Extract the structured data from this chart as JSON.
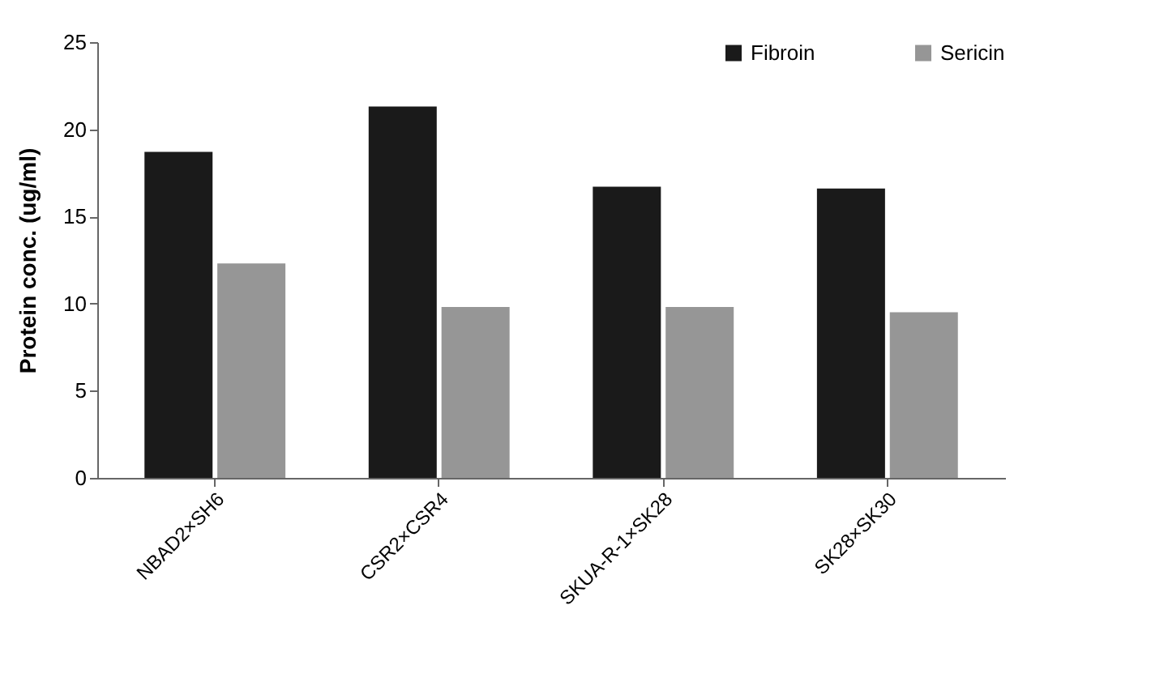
{
  "chart_data": {
    "type": "bar",
    "ylabel": "Protein conc. (ug/ml)",
    "categories": [
      "NBAD2×SH6",
      "CSR2×CSR4",
      "SKUA-R-1×SK28",
      "SK28×SK30"
    ],
    "series": [
      {
        "name": "Fibroin",
        "color": "#1a1a1a",
        "values": [
          18.7,
          21.3,
          16.7,
          16.6
        ]
      },
      {
        "name": "Sericin",
        "color": "#969696",
        "values": [
          12.3,
          9.8,
          9.8,
          9.5
        ]
      }
    ],
    "ylim": [
      0,
      25
    ],
    "yticks": [
      0,
      5,
      10,
      15,
      20,
      25
    ],
    "grid": false,
    "legend": "top right"
  }
}
